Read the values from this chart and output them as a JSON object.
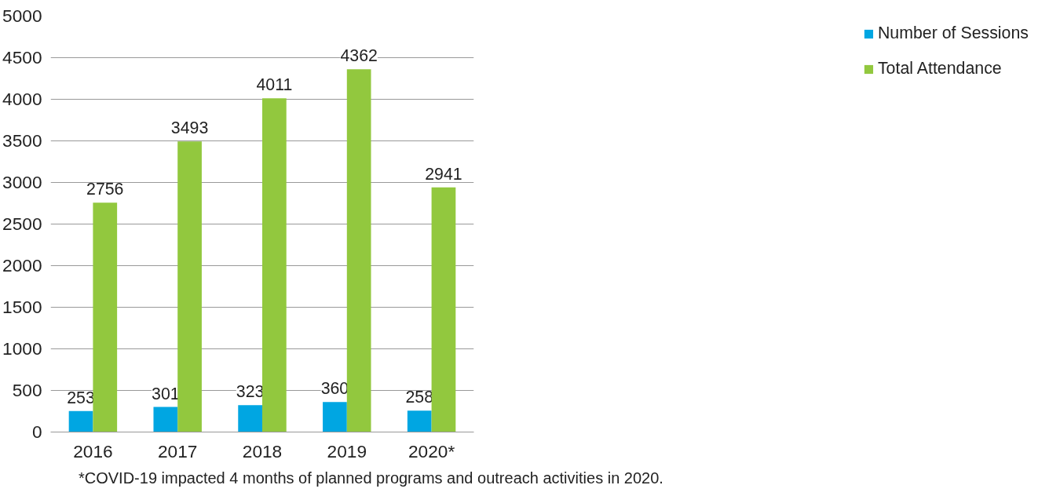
{
  "chart_data": {
    "type": "bar",
    "categories": [
      "2016",
      "2017",
      "2018",
      "2019",
      "2020*"
    ],
    "series": [
      {
        "name": "Number of Sessions",
        "color": "#00a6e2",
        "values": [
          253,
          301,
          323,
          360,
          258
        ]
      },
      {
        "name": "Total Attendance",
        "color": "#92c83e",
        "values": [
          2756,
          3493,
          4011,
          4362,
          2941
        ]
      }
    ],
    "ylim": [
      0,
      5000
    ],
    "yticks": [
      0,
      500,
      1000,
      1500,
      2000,
      2500,
      3000,
      3500,
      4000,
      4500,
      5000
    ],
    "grid": "y",
    "legend": "right",
    "data_labels": true,
    "annotations": [
      "*COVID-19 impacted 4 months of planned programs and outreach activities in 2020."
    ]
  }
}
